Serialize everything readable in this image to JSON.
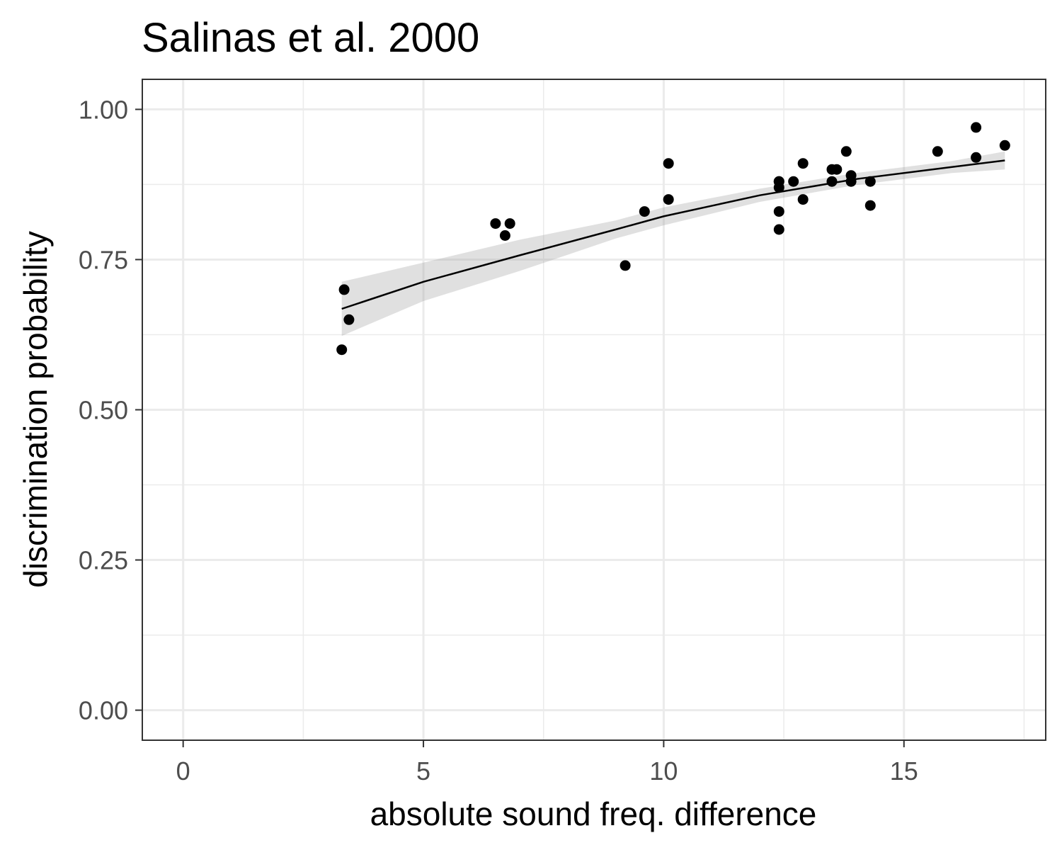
{
  "chart_data": {
    "type": "scatter",
    "title": "Salinas et al. 2000",
    "xlabel": "absolute sound freq. difference",
    "ylabel": "discrimination probability",
    "xlim": [
      -0.85,
      17.95
    ],
    "ylim": [
      -0.05,
      1.05
    ],
    "x_ticks": [
      0,
      5,
      10,
      15
    ],
    "x_tick_labels": [
      "0",
      "5",
      "10",
      "15"
    ],
    "y_ticks": [
      0,
      0.25,
      0.5,
      0.75,
      1.0
    ],
    "y_tick_labels": [
      "0.00",
      "0.25",
      "0.50",
      "0.75",
      "1.00"
    ],
    "grid": true,
    "points": {
      "x": [
        3.3,
        3.35,
        3.45,
        6.5,
        6.7,
        6.8,
        9.2,
        9.6,
        10.1,
        10.1,
        12.4,
        12.4,
        12.4,
        12.4,
        12.4,
        12.7,
        12.9,
        12.9,
        13.5,
        13.5,
        13.6,
        13.8,
        13.9,
        13.9,
        14.3,
        14.3,
        15.7,
        16.5,
        16.5,
        17.1
      ],
      "y": [
        0.6,
        0.7,
        0.65,
        0.81,
        0.79,
        0.81,
        0.74,
        0.83,
        0.91,
        0.85,
        0.88,
        0.87,
        0.83,
        0.8,
        0.88,
        0.88,
        0.91,
        0.85,
        0.9,
        0.88,
        0.9,
        0.93,
        0.89,
        0.88,
        0.88,
        0.84,
        0.93,
        0.97,
        0.92,
        0.94
      ]
    },
    "fit": {
      "x": [
        3.3,
        5.0,
        7.0,
        9.0,
        10.0,
        12.0,
        14.0,
        16.0,
        17.1
      ],
      "y": [
        0.668,
        0.713,
        0.757,
        0.8,
        0.822,
        0.857,
        0.884,
        0.904,
        0.915
      ],
      "lo": [
        0.623,
        0.681,
        0.731,
        0.785,
        0.807,
        0.846,
        0.874,
        0.894,
        0.9
      ],
      "hi": [
        0.713,
        0.745,
        0.783,
        0.815,
        0.837,
        0.868,
        0.894,
        0.914,
        0.93
      ]
    }
  }
}
